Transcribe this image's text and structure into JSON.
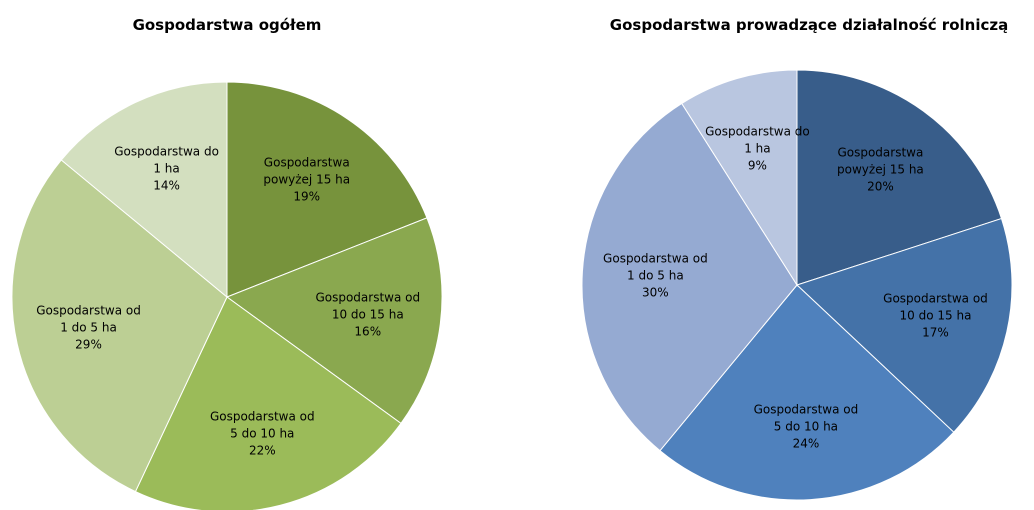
{
  "chart_data": [
    {
      "type": "pie",
      "title": "Gospodarstwa ogółem",
      "categories": [
        "Gospodarstwa powyżej 15 ha",
        "Gospodarstwa od 10 do 15 ha",
        "Gospodarstwa od 5 do 10 ha",
        "Gospodarstwa od 1 do 5 ha",
        "Gospodarstwa do 1 ha"
      ],
      "values": [
        19,
        16,
        22,
        29,
        14
      ],
      "value_labels": [
        "19%",
        "16%",
        "22%",
        "29%",
        "14%"
      ],
      "colors": [
        "#77933c",
        "#8aa84f",
        "#9bbb59",
        "#bccf94",
        "#d3dfbf"
      ]
    },
    {
      "type": "pie",
      "title": "Gospodarstwa prowadzące działalność rolniczą",
      "categories": [
        "Gospodarstwa powyżej 15 ha",
        "Gospodarstwa od 10 do 15 ha",
        "Gospodarstwa od 5 do 10 ha",
        "Gospodarstwa od 1 do 5 ha",
        "Gospodarstwa do 1 ha"
      ],
      "values": [
        20,
        17,
        24,
        30,
        9
      ],
      "value_labels": [
        "20%",
        "17%",
        "24%",
        "30%",
        "9%"
      ],
      "colors": [
        "#385d8a",
        "#4472a8",
        "#4f81bd",
        "#95aad2",
        "#b9c6e0"
      ]
    }
  ]
}
